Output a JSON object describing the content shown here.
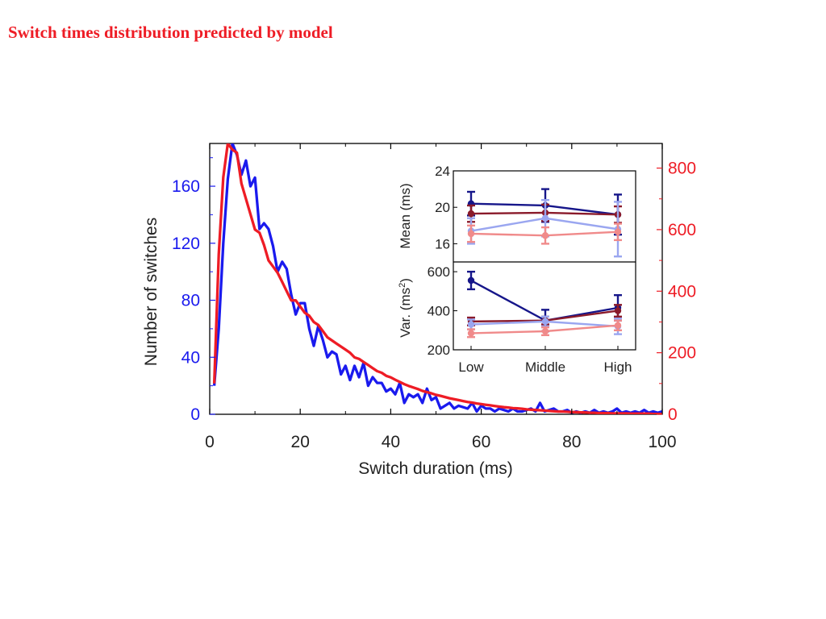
{
  "slide": {
    "title": "Switch times distribution predicted by model",
    "title_color": "#ee1c25"
  },
  "colors": {
    "blue": "#1a1aee",
    "red": "#ee1c25",
    "navy": "#16168a",
    "maroon": "#8a1a2a",
    "lightblue": "#9aa6f0",
    "pink": "#f08a8a"
  },
  "chart_data": [
    {
      "type": "line",
      "xlabel": "Switch duration (ms)",
      "ylabel": "Number of switches",
      "xlim": [
        0,
        100
      ],
      "ylim_left": [
        0,
        190
      ],
      "ylim_right": [
        0,
        880
      ],
      "xticks": [
        0,
        20,
        40,
        60,
        80,
        100
      ],
      "yticks_left": [
        0,
        40,
        80,
        120,
        160
      ],
      "yticks_right": [
        0,
        200,
        400,
        600,
        800
      ],
      "grid": false,
      "legend": "none",
      "series": [
        {
          "axis": "left",
          "color": "#1a1aee",
          "x": [
            1,
            2,
            3,
            4,
            5,
            6,
            7,
            8,
            9,
            10,
            11,
            12,
            13,
            14,
            15,
            16,
            17,
            18,
            19,
            20,
            21,
            22,
            23,
            24,
            25,
            26,
            27,
            28,
            29,
            30,
            31,
            32,
            33,
            34,
            35,
            36,
            37,
            38,
            39,
            40,
            41,
            42,
            43,
            44,
            45,
            46,
            47,
            48,
            49,
            50,
            51,
            52,
            53,
            54,
            55,
            56,
            57,
            58,
            59,
            60,
            61,
            62,
            63,
            64,
            65,
            66,
            67,
            68,
            69,
            70,
            71,
            72,
            73,
            74,
            75,
            76,
            77,
            78,
            79,
            80,
            81,
            82,
            83,
            84,
            85,
            86,
            87,
            88,
            89,
            90,
            91,
            92,
            93,
            94,
            95,
            96,
            97,
            98,
            99,
            100
          ],
          "y": [
            20,
            60,
            120,
            165,
            190,
            182,
            168,
            178,
            160,
            166,
            130,
            134,
            130,
            118,
            100,
            107,
            102,
            84,
            70,
            78,
            78,
            60,
            48,
            62,
            52,
            40,
            44,
            42,
            28,
            34,
            24,
            34,
            26,
            36,
            20,
            26,
            22,
            22,
            16,
            18,
            14,
            22,
            8,
            14,
            12,
            14,
            8,
            18,
            10,
            12,
            4,
            6,
            8,
            4,
            6,
            5,
            4,
            8,
            2,
            6,
            4,
            4,
            2,
            4,
            3,
            2,
            4,
            2,
            2,
            3,
            4,
            2,
            8,
            2,
            3,
            4,
            2,
            2,
            3,
            1,
            2,
            1,
            2,
            1,
            3,
            1,
            2,
            1,
            2,
            4,
            1,
            2,
            1,
            2,
            1,
            3,
            1,
            2,
            1,
            2
          ]
        },
        {
          "axis": "right",
          "color": "#ee1c25",
          "x": [
            1,
            2,
            3,
            4,
            5,
            6,
            7,
            8,
            9,
            10,
            11,
            12,
            13,
            14,
            15,
            16,
            17,
            18,
            19,
            20,
            21,
            22,
            23,
            24,
            25,
            26,
            27,
            28,
            29,
            30,
            31,
            32,
            33,
            34,
            35,
            36,
            37,
            38,
            39,
            40,
            41,
            42,
            43,
            44,
            45,
            46,
            47,
            48,
            49,
            50,
            51,
            52,
            53,
            54,
            55,
            56,
            57,
            58,
            59,
            60,
            61,
            62,
            63,
            64,
            65,
            66,
            67,
            68,
            69,
            70,
            71,
            72,
            73,
            74,
            75,
            76,
            77,
            78,
            79,
            80,
            81,
            82,
            83,
            84,
            85,
            86,
            87,
            88,
            89,
            90,
            91,
            92,
            93,
            94,
            95,
            96,
            97,
            98,
            99,
            100
          ],
          "y": [
            100,
            520,
            770,
            880,
            860,
            850,
            750,
            700,
            650,
            600,
            590,
            550,
            500,
            480,
            460,
            430,
            400,
            370,
            370,
            350,
            330,
            320,
            300,
            290,
            270,
            250,
            240,
            230,
            220,
            210,
            200,
            185,
            180,
            170,
            160,
            150,
            140,
            135,
            125,
            120,
            112,
            105,
            98,
            92,
            87,
            82,
            76,
            72,
            68,
            63,
            60,
            56,
            52,
            49,
            46,
            43,
            40,
            38,
            35,
            33,
            31,
            29,
            27,
            25,
            23,
            22,
            20,
            19,
            18,
            16,
            15,
            14,
            13,
            12,
            11,
            10,
            9,
            9,
            8,
            7,
            7,
            6,
            6,
            5,
            5,
            4,
            4,
            4,
            3,
            3,
            3,
            3,
            2,
            2,
            2,
            2,
            2,
            1,
            1,
            1
          ]
        }
      ]
    },
    {
      "type": "line",
      "ylabel": "Mean (ms)",
      "categories": [
        "Low",
        "Middle",
        "High"
      ],
      "ylim": [
        14,
        24
      ],
      "yticks": [
        16,
        20,
        24
      ],
      "series": [
        {
          "color": "#16168a",
          "values": [
            20.4,
            20.2,
            19.2
          ],
          "err": [
            1.3,
            1.8,
            2.2
          ]
        },
        {
          "color": "#8a1a2a",
          "values": [
            19.3,
            19.4,
            19.2
          ],
          "err": [
            0.9,
            0.9,
            0.9
          ]
        },
        {
          "color": "#9aa6f0",
          "values": [
            17.4,
            18.8,
            17.6
          ],
          "err": [
            1.4,
            2.0,
            3.0
          ]
        },
        {
          "color": "#f08a8a",
          "values": [
            17.1,
            16.9,
            17.3
          ],
          "err": [
            0.9,
            0.9,
            0.9
          ]
        }
      ]
    },
    {
      "type": "line",
      "ylabel": "Var. (ms²)",
      "categories": [
        "Low",
        "Middle",
        "High"
      ],
      "ylim": [
        200,
        650
      ],
      "yticks": [
        200,
        400,
        600
      ],
      "series": [
        {
          "color": "#16168a",
          "values": [
            555,
            350,
            415
          ],
          "err": [
            45,
            55,
            65
          ]
        },
        {
          "color": "#8a1a2a",
          "values": [
            345,
            350,
            400
          ],
          "err": [
            20,
            20,
            30
          ]
        },
        {
          "color": "#9aa6f0",
          "values": [
            330,
            345,
            320
          ],
          "err": [
            25,
            25,
            40
          ]
        },
        {
          "color": "#f08a8a",
          "values": [
            285,
            295,
            325
          ],
          "err": [
            20,
            20,
            25
          ]
        }
      ]
    }
  ]
}
